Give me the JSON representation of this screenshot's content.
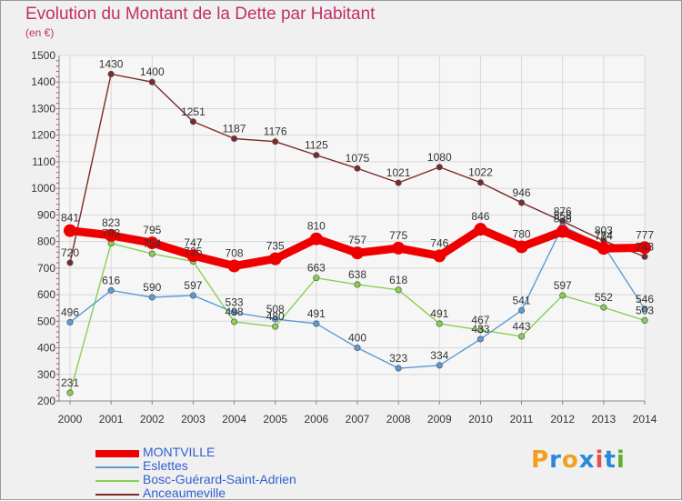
{
  "header": {
    "title": "Evolution du Montant de la Dette par Habitant",
    "subtitle": "(en €)"
  },
  "logo": {
    "text": "Proxiti",
    "colors": [
      "#f0a020",
      "#2a8ad8",
      "#f0a020",
      "#2a8ad8",
      "#e85050",
      "#2a8ad8",
      "#60b030"
    ]
  },
  "chart_data": {
    "type": "line",
    "x": [
      "2000",
      "2001",
      "2002",
      "2003",
      "2004",
      "2005",
      "2006",
      "2007",
      "2008",
      "2009",
      "2010",
      "2011",
      "2012",
      "2013",
      "2014"
    ],
    "ylim": [
      200,
      1500
    ],
    "yticks": [
      200,
      300,
      400,
      500,
      600,
      700,
      800,
      900,
      1000,
      1100,
      1200,
      1300,
      1400,
      1500
    ],
    "grid": true,
    "legend_position": "bottom-left",
    "series": [
      {
        "name": "MONTVILLE",
        "color": "#ee0000",
        "emphasis": true,
        "values": [
          841,
          823,
          795,
          747,
          708,
          735,
          810,
          757,
          775,
          746,
          846,
          780,
          838,
          774,
          777
        ]
      },
      {
        "name": "Eslettes",
        "color": "#5b9bd5",
        "values": [
          496,
          616,
          590,
          597,
          533,
          508,
          491,
          400,
          323,
          334,
          433,
          541,
          858,
          784,
          546
        ]
      },
      {
        "name": "Bosc-Guérard-Saint-Adrien",
        "color": "#88d050",
        "values": [
          231,
          793,
          754,
          725,
          498,
          480,
          663,
          638,
          618,
          491,
          467,
          443,
          597,
          552,
          503
        ]
      },
      {
        "name": "Anceaumeville",
        "color": "#7a2a2a",
        "values": [
          720,
          1430,
          1400,
          1251,
          1187,
          1176,
          1125,
          1075,
          1021,
          1080,
          1022,
          946,
          876,
          803,
          743
        ]
      }
    ]
  }
}
